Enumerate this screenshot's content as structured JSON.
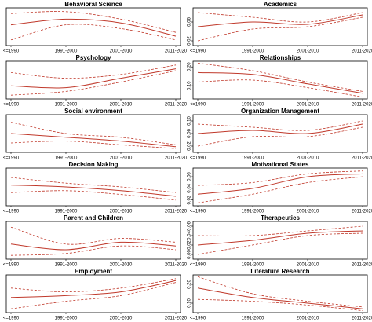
{
  "chart_data": [
    {
      "type": "line",
      "title": "Behavioral Science",
      "categories": [
        "<=1990",
        "1991-2000",
        "2001-2010",
        "2011-2020"
      ],
      "ylim": [
        0,
        1
      ],
      "series": [
        {
          "color": "#c0392b",
          "line_style": "solid",
          "values": [
            0.55,
            0.7,
            0.6,
            0.25
          ]
        },
        {
          "color": "#c0392b",
          "line_style": "dashed",
          "values": [
            0.15,
            0.55,
            0.45,
            0.15
          ]
        },
        {
          "color": "#c0392b",
          "line_style": "dashed",
          "values": [
            0.85,
            0.9,
            0.7,
            0.35
          ]
        }
      ]
    },
    {
      "type": "line",
      "title": "Academics",
      "categories": [
        "<=1990",
        "1991-2000",
        "2001-2010",
        "2011-2020"
      ],
      "ylim": [
        0.01,
        0.09
      ],
      "yticks": [
        0.02,
        0.06
      ],
      "series": [
        {
          "color": "#c0392b",
          "line_style": "solid",
          "values": [
            0.05,
            0.06,
            0.055,
            0.075
          ]
        },
        {
          "color": "#c0392b",
          "line_style": "dashed",
          "values": [
            0.02,
            0.045,
            0.05,
            0.07
          ]
        },
        {
          "color": "#c0392b",
          "line_style": "dashed",
          "values": [
            0.08,
            0.07,
            0.06,
            0.08
          ]
        }
      ]
    },
    {
      "type": "line",
      "title": "Psychology",
      "categories": [
        "<=1990",
        "1991-2000",
        "2001-2010",
        "2011-2020"
      ],
      "ylim": [
        0,
        1
      ],
      "series": [
        {
          "color": "#c0392b",
          "line_style": "solid",
          "values": [
            0.35,
            0.3,
            0.55,
            0.8
          ]
        },
        {
          "color": "#c0392b",
          "line_style": "dashed",
          "values": [
            0.1,
            0.2,
            0.45,
            0.75
          ]
        },
        {
          "color": "#c0392b",
          "line_style": "dashed",
          "values": [
            0.7,
            0.55,
            0.65,
            0.9
          ]
        }
      ]
    },
    {
      "type": "line",
      "title": "Relationships",
      "categories": [
        "<=1990",
        "1991-2000",
        "2001-2010",
        "2011-2020"
      ],
      "ylim": [
        0.03,
        0.23
      ],
      "yticks": [
        {
          "value": 0.1,
          "label": "0.10"
        },
        {
          "value": 0.2,
          "label": "0.20"
        }
      ],
      "series": [
        {
          "color": "#c0392b",
          "line_style": "solid",
          "values": [
            0.17,
            0.16,
            0.11,
            0.06
          ]
        },
        {
          "color": "#c0392b",
          "line_style": "dashed",
          "values": [
            0.12,
            0.13,
            0.09,
            0.04
          ]
        },
        {
          "color": "#c0392b",
          "line_style": "dashed",
          "values": [
            0.22,
            0.18,
            0.12,
            0.07
          ]
        }
      ]
    },
    {
      "type": "line",
      "title": "Social environment",
      "categories": [
        "<=1990",
        "1991-2000",
        "2001-2010",
        "2011-2020"
      ],
      "ylim": [
        0,
        1
      ],
      "series": [
        {
          "color": "#c0392b",
          "line_style": "solid",
          "values": [
            0.5,
            0.4,
            0.3,
            0.15
          ]
        },
        {
          "color": "#c0392b",
          "line_style": "dashed",
          "values": [
            0.25,
            0.3,
            0.2,
            0.1
          ]
        },
        {
          "color": "#c0392b",
          "line_style": "dashed",
          "values": [
            0.8,
            0.5,
            0.4,
            0.2
          ]
        }
      ]
    },
    {
      "type": "line",
      "title": "Organization Management",
      "categories": [
        "<=1990",
        "1991-2000",
        "2001-2010",
        "2011-2020"
      ],
      "ylim": [
        0,
        0.12
      ],
      "yticks": [
        0.02,
        0.06,
        {
          "value": 0.1,
          "label": "0.10"
        }
      ],
      "series": [
        {
          "color": "#c0392b",
          "line_style": "solid",
          "values": [
            0.06,
            0.07,
            0.06,
            0.09
          ]
        },
        {
          "color": "#c0392b",
          "line_style": "dashed",
          "values": [
            0.02,
            0.05,
            0.05,
            0.08
          ]
        },
        {
          "color": "#c0392b",
          "line_style": "dashed",
          "values": [
            0.09,
            0.08,
            0.07,
            0.1
          ]
        }
      ]
    },
    {
      "type": "line",
      "title": "Decision Making",
      "categories": [
        "<=1990",
        "1991-2000",
        "2001-2010",
        "2011-2020"
      ],
      "ylim": [
        0,
        1
      ],
      "series": [
        {
          "color": "#c0392b",
          "line_style": "solid",
          "values": [
            0.55,
            0.5,
            0.4,
            0.25
          ]
        },
        {
          "color": "#c0392b",
          "line_style": "dashed",
          "values": [
            0.35,
            0.4,
            0.3,
            0.15
          ]
        },
        {
          "color": "#c0392b",
          "line_style": "dashed",
          "values": [
            0.75,
            0.6,
            0.5,
            0.35
          ]
        }
      ]
    },
    {
      "type": "line",
      "title": "Motivational States",
      "categories": [
        "<=1990",
        "1991-2000",
        "2001-2010",
        "2011-2020"
      ],
      "ylim": [
        0.01,
        0.075
      ],
      "yticks": [
        0.02,
        0.04,
        0.06
      ],
      "series": [
        {
          "color": "#c0392b",
          "line_style": "solid",
          "values": [
            0.03,
            0.04,
            0.06,
            0.065
          ]
        },
        {
          "color": "#c0392b",
          "line_style": "dashed",
          "values": [
            0.015,
            0.03,
            0.05,
            0.06
          ]
        },
        {
          "color": "#c0392b",
          "line_style": "dashed",
          "values": [
            0.045,
            0.05,
            0.065,
            0.07
          ]
        }
      ]
    },
    {
      "type": "line",
      "title": "Parent and Children",
      "categories": [
        "<=1990",
        "1991-2000",
        "2001-2010",
        "2011-2020"
      ],
      "ylim": [
        0,
        1
      ],
      "series": [
        {
          "color": "#c0392b",
          "line_style": "solid",
          "values": [
            0.4,
            0.25,
            0.45,
            0.35
          ]
        },
        {
          "color": "#c0392b",
          "line_style": "dashed",
          "values": [
            0.1,
            0.15,
            0.35,
            0.25
          ]
        },
        {
          "color": "#c0392b",
          "line_style": "dashed",
          "values": [
            0.85,
            0.4,
            0.55,
            0.45
          ]
        }
      ]
    },
    {
      "type": "line",
      "title": "Therapeutics",
      "categories": [
        "<=1990",
        "1991-2000",
        "2001-2010",
        "2011-2020"
      ],
      "ylim": [
        -0.01,
        0.07
      ],
      "yticks": [
        {
          "value": 0,
          "label": "0.00"
        },
        0.02,
        0.04,
        0.06
      ],
      "series": [
        {
          "color": "#c0392b",
          "line_style": "solid",
          "values": [
            0.02,
            0.03,
            0.045,
            0.05
          ]
        },
        {
          "color": "#c0392b",
          "line_style": "dashed",
          "values": [
            0,
            0.02,
            0.04,
            0.045
          ]
        },
        {
          "color": "#c0392b",
          "line_style": "dashed",
          "values": [
            0.04,
            0.04,
            0.05,
            0.06
          ]
        }
      ]
    },
    {
      "type": "line",
      "title": "Employment",
      "categories": [
        "<=1990",
        "1991-2000",
        "2001-2010",
        "2011-2020"
      ],
      "ylim": [
        0,
        1
      ],
      "series": [
        {
          "color": "#c0392b",
          "line_style": "solid",
          "values": [
            0.4,
            0.45,
            0.55,
            0.85
          ]
        },
        {
          "color": "#c0392b",
          "line_style": "dashed",
          "values": [
            0.1,
            0.3,
            0.45,
            0.8
          ]
        },
        {
          "color": "#c0392b",
          "line_style": "dashed",
          "values": [
            0.65,
            0.55,
            0.65,
            0.9
          ]
        }
      ]
    },
    {
      "type": "line",
      "title": "Literature Research",
      "categories": [
        "<=1990",
        "1991-2000",
        "2001-2010",
        "2011-2020"
      ],
      "ylim": [
        0.05,
        0.25
      ],
      "yticks": [
        {
          "value": 0.1,
          "label": "0.10"
        },
        {
          "value": 0.2,
          "label": "0.20"
        }
      ],
      "series": [
        {
          "color": "#c0392b",
          "line_style": "solid",
          "values": [
            0.18,
            0.13,
            0.1,
            0.07
          ]
        },
        {
          "color": "#c0392b",
          "line_style": "dashed",
          "values": [
            0.12,
            0.11,
            0.09,
            0.06
          ]
        },
        {
          "color": "#c0392b",
          "line_style": "dashed",
          "values": [
            0.24,
            0.15,
            0.11,
            0.08
          ]
        }
      ]
    }
  ]
}
